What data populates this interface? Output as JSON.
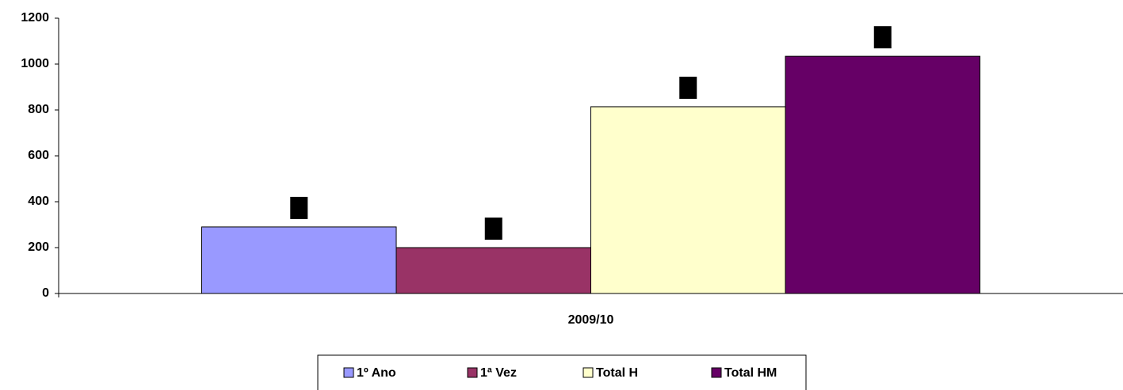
{
  "chart_data": {
    "type": "bar",
    "categories": [
      "2009/10"
    ],
    "series": [
      {
        "name": "1º Ano",
        "color": "#9999ff",
        "values": [
          290
        ]
      },
      {
        "name": "1ª Vez",
        "color": "#993366",
        "values": [
          200
        ]
      },
      {
        "name": "Total H",
        "color": "#ffffcc",
        "values": [
          814
        ]
      },
      {
        "name": "Total HM",
        "color": "#660066",
        "values": [
          1034
        ]
      }
    ],
    "ylim": [
      0,
      1200
    ],
    "yticks": [
      0,
      200,
      400,
      600,
      800,
      1000,
      1200
    ],
    "grid": false,
    "legend": "bottom"
  }
}
